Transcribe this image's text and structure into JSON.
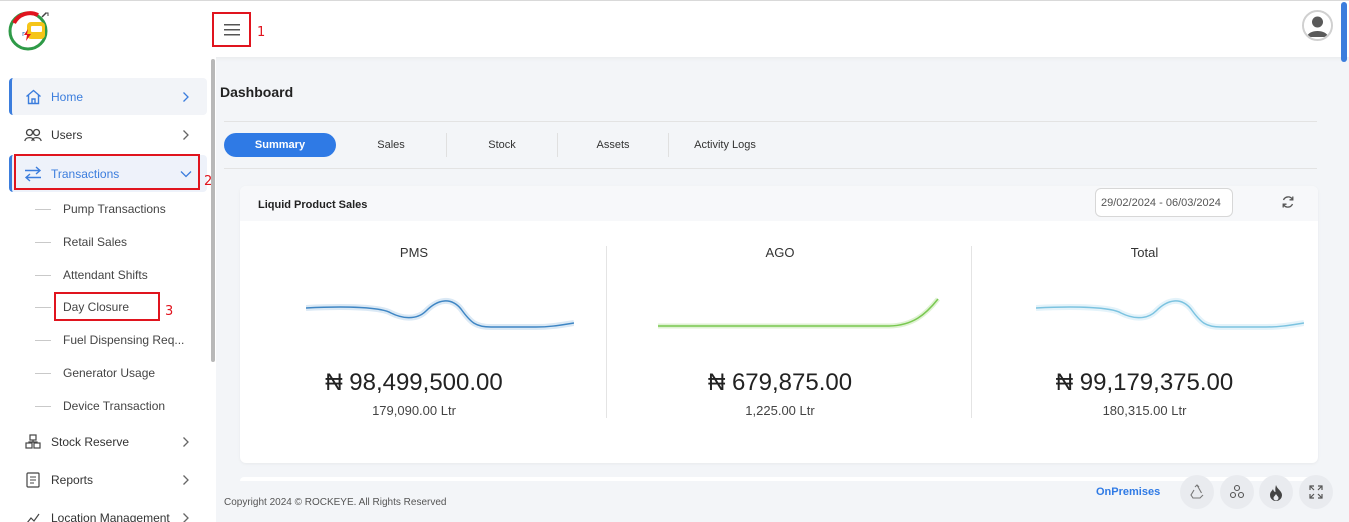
{
  "header": {
    "annotation_1": "1"
  },
  "sidebar": {
    "items": [
      {
        "label": "Home",
        "icon": "home-icon"
      },
      {
        "label": "Users",
        "icon": "users-icon"
      },
      {
        "label": "Transactions",
        "icon": "transfer-icon"
      },
      {
        "label": "Stock Reserve",
        "icon": "stock-icon"
      },
      {
        "label": "Reports",
        "icon": "report-icon"
      },
      {
        "label": "Location Management",
        "icon": "location-icon"
      }
    ],
    "subitems": [
      "Pump Transactions",
      "Retail Sales",
      "Attendant Shifts",
      "Day Closure",
      "Fuel Dispensing Req...",
      "Generator Usage",
      "Device Transaction"
    ],
    "annotation_2": "2",
    "annotation_3": "3"
  },
  "main": {
    "title": "Dashboard",
    "tabs": [
      "Summary",
      "Sales",
      "Stock",
      "Assets",
      "Activity Logs"
    ],
    "active_tab": "Summary"
  },
  "card": {
    "title": "Liquid Product Sales",
    "date_range": "29/02/2024 - 06/03/2024",
    "columns": [
      {
        "label": "PMS",
        "amount": "₦ 98,499,500.00",
        "liters": "179,090.00 Ltr",
        "color": "#3f86c4"
      },
      {
        "label": "AGO",
        "amount": "₦ 679,875.00",
        "liters": "1,225.00 Ltr",
        "color": "#79c850"
      },
      {
        "label": "Total",
        "amount": "₦ 99,179,375.00",
        "liters": "180,315.00 Ltr",
        "color": "#7cc3e0"
      }
    ]
  },
  "footer": {
    "copyright": "Copyright 2024 © ROCKEYE. All Rights Reserved",
    "mode": "OnPremises"
  },
  "colors": {
    "accent": "#2f7ae5",
    "annotation": "#e0141e"
  }
}
